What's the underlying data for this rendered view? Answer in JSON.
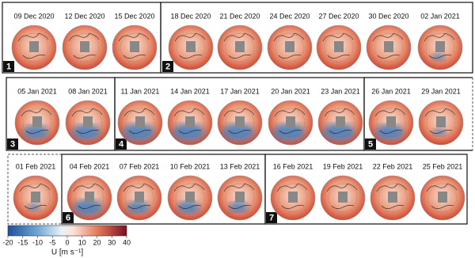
{
  "groups": [
    {
      "number": "1",
      "maps": [
        "09 Dec 2020",
        "12 Dec 2020",
        "15 Dec 2020"
      ]
    },
    {
      "number": "2",
      "maps": [
        "18 Dec 2020",
        "21 Dec 2020",
        "24 Dec 2020",
        "27 Dec 2020",
        "30 Dec 2020",
        "02 Jan 2021"
      ]
    },
    {
      "number": "3",
      "maps": [
        "05 Jan 2021",
        "08 Jan 2021"
      ]
    },
    {
      "number": "4",
      "maps": [
        "11 Jan 2021",
        "14 Jan 2021",
        "17 Jan 2021",
        "20 Jan 2021",
        "23 Jan 2021"
      ]
    },
    {
      "number": "5",
      "maps": [
        "26 Jan 2021",
        "29 Jan 2021",
        "01 Feb 2021"
      ]
    },
    {
      "number": "6",
      "maps": [
        "04 Feb 2021",
        "07 Feb 2021",
        "10 Feb 2021",
        "13 Feb 2021"
      ]
    },
    {
      "number": "7",
      "maps": [
        "16 Feb 2021",
        "19 Feb 2021",
        "22 Feb 2021",
        "25 Feb 2021"
      ]
    }
  ],
  "colorbar": {
    "label": "U [m s⁻¹]",
    "range": [
      -20,
      40
    ],
    "ticks": [
      -20,
      -15,
      -10,
      -5,
      0,
      10,
      20,
      30,
      40
    ]
  }
}
